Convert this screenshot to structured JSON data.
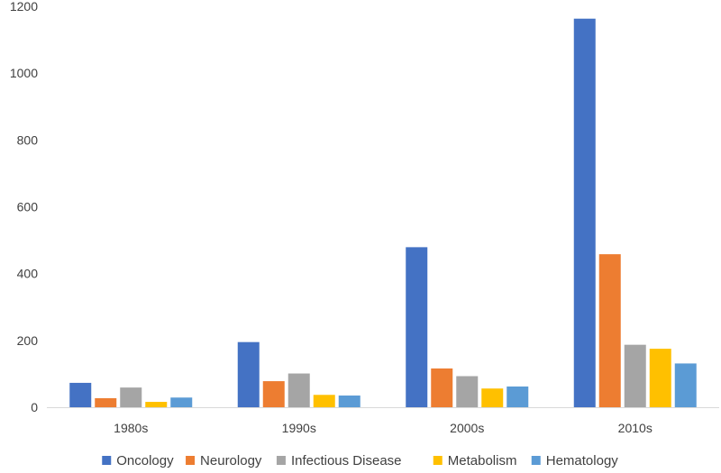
{
  "chart_data": {
    "type": "bar",
    "categories": [
      "1980s",
      "1990s",
      "2000s",
      "2010s"
    ],
    "series": [
      {
        "name": "Oncology",
        "color": "#4472C4",
        "values": [
          73,
          195,
          479,
          1163
        ]
      },
      {
        "name": "Neurology",
        "color": "#ED7D31",
        "values": [
          27,
          78,
          116,
          458
        ]
      },
      {
        "name": "Infectious Disease",
        "color": "#A5A5A5",
        "values": [
          59,
          101,
          93,
          187
        ]
      },
      {
        "name": "Metabolism",
        "color": "#FFC000",
        "values": [
          16,
          37,
          56,
          175
        ]
      },
      {
        "name": "Hematology",
        "color": "#5B9BD5",
        "values": [
          29,
          35,
          62,
          131
        ]
      }
    ],
    "yticks": [
      0,
      200,
      400,
      600,
      800,
      1000,
      1200
    ],
    "ylim": [
      0,
      1200
    ],
    "grid": false,
    "legend_position": "bottom",
    "title": "",
    "xlabel": "",
    "ylabel": ""
  }
}
